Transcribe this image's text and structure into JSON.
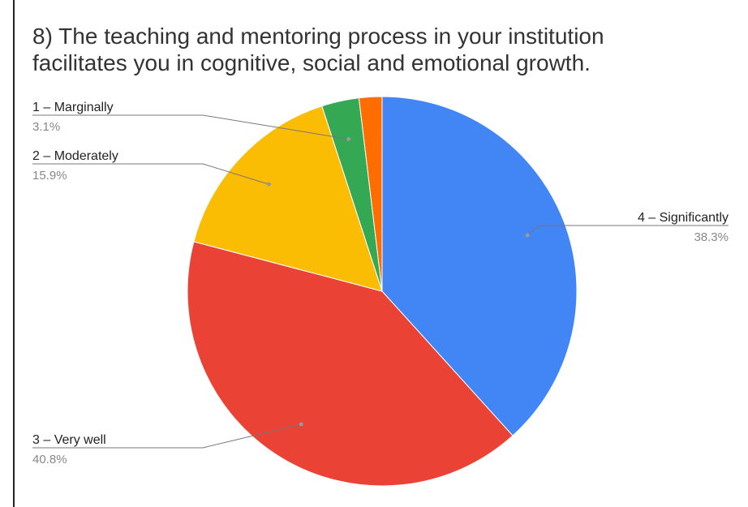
{
  "chart_data": {
    "type": "pie",
    "title": "8) The teaching and mentoring process in your institution facilitates you in cognitive, social and emotional growth.",
    "categories": [
      "4 – Significantly",
      "3 – Very well",
      "2 – Moderately",
      "1 – Marginally",
      null
    ],
    "values": [
      38.3,
      40.8,
      15.9,
      3.1,
      1.9
    ],
    "value_labels": [
      "38.3%",
      "40.8%",
      "15.9%",
      "3.1%",
      null
    ],
    "colors": [
      "#4285f4",
      "#ea4335",
      "#fbbc04",
      "#34a853",
      "#ff6d01"
    ]
  }
}
